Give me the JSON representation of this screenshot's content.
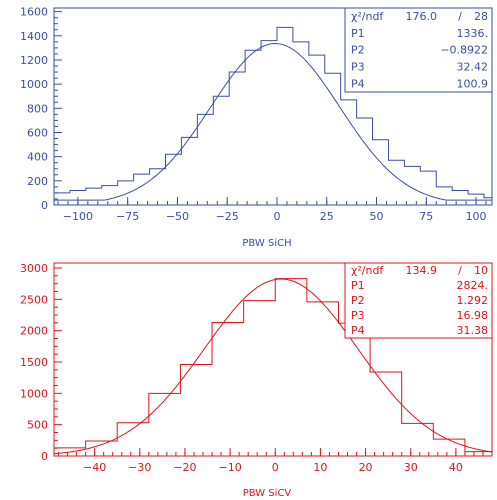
{
  "chart_data": [
    {
      "type": "line",
      "color": "#3a4fa3",
      "xlabel": "PBW SiCH",
      "xlim": [
        -112,
        108
      ],
      "ylim": [
        0,
        1630
      ],
      "x_ticks": [
        -100,
        -75,
        -50,
        -25,
        0,
        25,
        50,
        75,
        100
      ],
      "y_ticks": [
        0,
        200,
        400,
        600,
        800,
        1000,
        1200,
        1400,
        1600
      ],
      "stats": [
        {
          "name": "χ²/ndf",
          "value": "176.0",
          "sep": "/",
          "ndf": "28"
        },
        {
          "name": "P1",
          "value": "1336."
        },
        {
          "name": "P2",
          "value": "−0.8922"
        },
        {
          "name": "P3",
          "value": "32.42"
        },
        {
          "name": "P4",
          "value": "100.9"
        }
      ],
      "fit": {
        "p1": 1336,
        "p2": -0.8922,
        "p3": 32.42,
        "p4": 100.9
      },
      "histogram": {
        "edges": [
          -112,
          -104,
          -96,
          -88,
          -80,
          -72,
          -64,
          -56,
          -48,
          -40,
          -32,
          -24,
          -16,
          -8,
          0,
          8,
          16,
          24,
          32,
          40,
          48,
          56,
          64,
          72,
          80,
          88,
          96,
          104,
          108
        ],
        "values": [
          100,
          120,
          140,
          160,
          200,
          255,
          300,
          420,
          560,
          750,
          900,
          1100,
          1280,
          1360,
          1470,
          1350,
          1240,
          1090,
          870,
          720,
          540,
          370,
          320,
          280,
          150,
          120,
          90,
          60
        ]
      }
    },
    {
      "type": "line",
      "color": "#e0141a",
      "xlabel": "PBW SiCV",
      "xlim": [
        -49,
        48
      ],
      "ylim": [
        0,
        3080
      ],
      "x_ticks": [
        -40,
        -30,
        -20,
        -10,
        0,
        10,
        20,
        30,
        40
      ],
      "y_ticks": [
        0,
        500,
        1000,
        1500,
        2000,
        2500,
        3000
      ],
      "stats": [
        {
          "name": "χ²/ndf",
          "value": "134.9",
          "sep": "/",
          "ndf": "10"
        },
        {
          "name": "P1",
          "value": "2824."
        },
        {
          "name": "P2",
          "value": "1.292"
        },
        {
          "name": "P3",
          "value": "16.98"
        },
        {
          "name": "P4",
          "value": "31.38"
        }
      ],
      "fit": {
        "p1": 2824,
        "p2": 1.292,
        "p3": 16.98,
        "p4": 31.38
      },
      "histogram": {
        "edges": [
          -49,
          -42,
          -35,
          -28,
          -21,
          -14,
          -7,
          0,
          7,
          14,
          21,
          28,
          35,
          42,
          48
        ],
        "values": [
          130,
          240,
          530,
          1000,
          1460,
          2130,
          2480,
          2830,
          2460,
          2120,
          1340,
          520,
          270,
          70
        ]
      }
    }
  ]
}
